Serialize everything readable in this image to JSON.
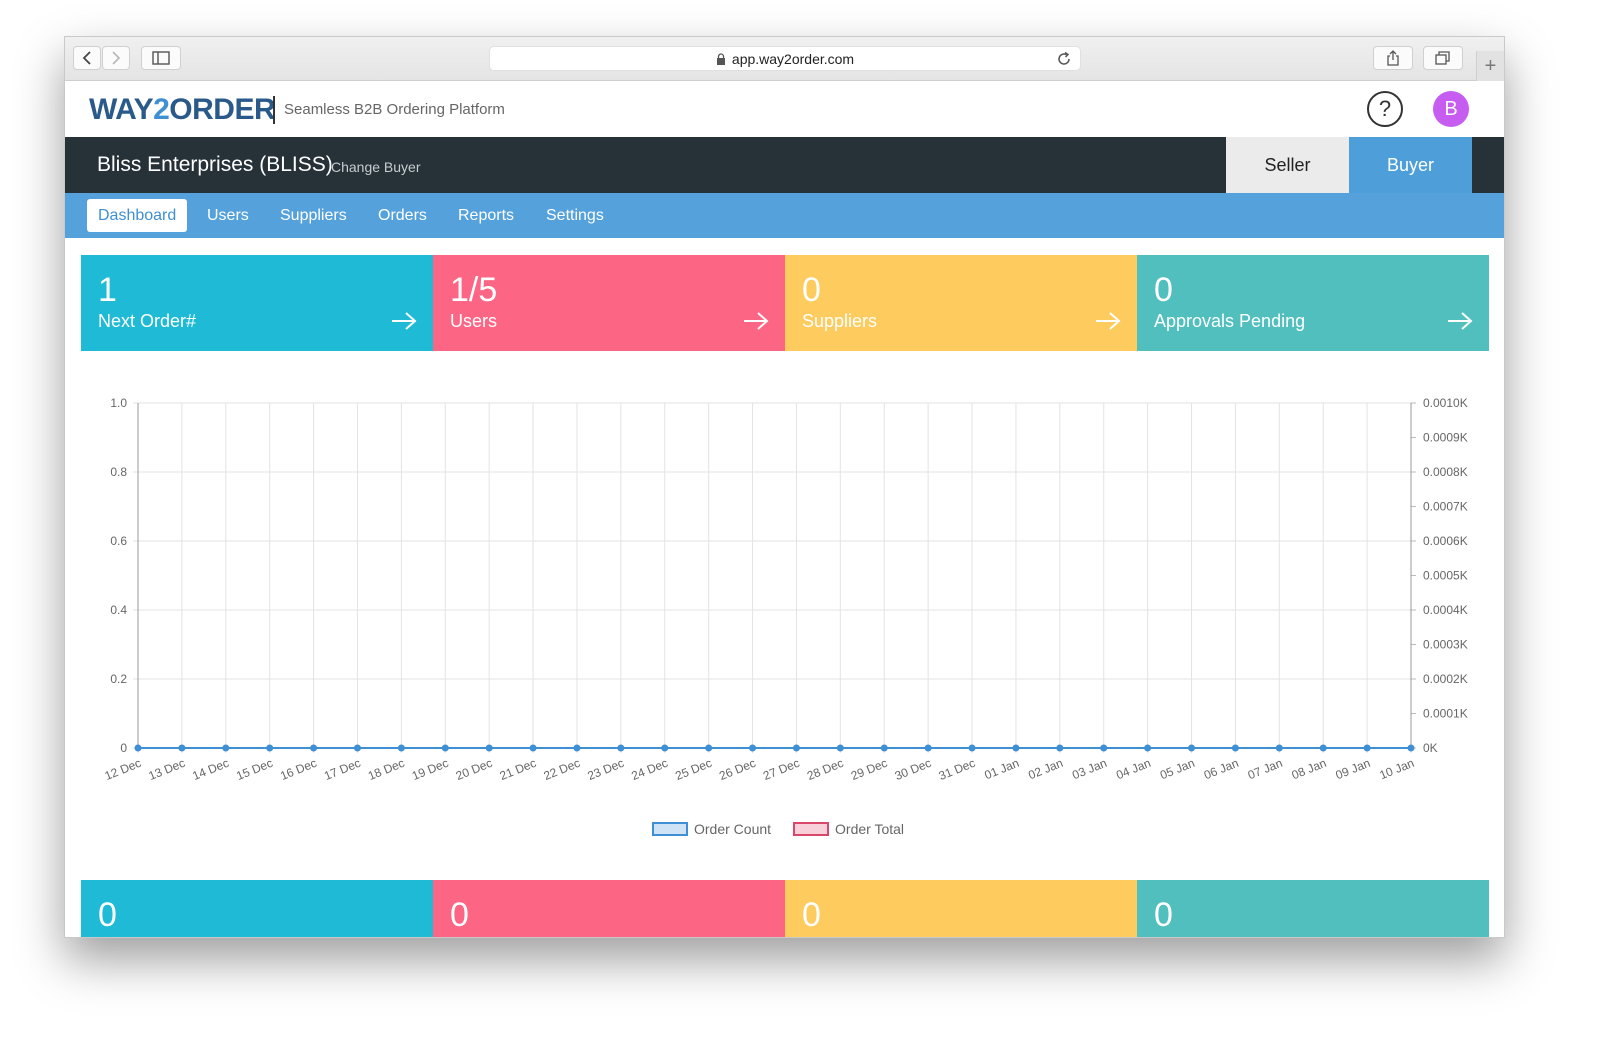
{
  "browser": {
    "url": "app.way2order.com"
  },
  "header": {
    "logo_part1": "WAY",
    "logo_part2": "2",
    "logo_part3": "ORDER",
    "tagline": "Seamless B2B Ordering Platform",
    "help_label": "?",
    "avatar_initial": "B"
  },
  "company_bar": {
    "name": "Bliss Enterprises (BLISS)",
    "change_label": "Change Buyer",
    "roles": [
      "Seller",
      "Buyer"
    ],
    "active_role": "Buyer"
  },
  "nav": {
    "items": [
      "Dashboard",
      "Users",
      "Suppliers",
      "Orders",
      "Reports",
      "Settings"
    ],
    "active": "Dashboard"
  },
  "stat_cards": [
    {
      "value": "1",
      "label": "Next Order#",
      "color": "#1fbbd6"
    },
    {
      "value": "1/5",
      "label": "Users",
      "color": "#fd6584"
    },
    {
      "value": "0",
      "label": "Suppliers",
      "color": "#fdcb5e"
    },
    {
      "value": "0",
      "label": "Approvals Pending",
      "color": "#52bfbf"
    }
  ],
  "bottom_cards": [
    {
      "value": "0",
      "color": "#1fbbd6"
    },
    {
      "value": "0",
      "color": "#fd6584"
    },
    {
      "value": "0",
      "color": "#fdcb5e"
    },
    {
      "value": "0",
      "color": "#52bfbf"
    }
  ],
  "chart_data": {
    "type": "line",
    "categories": [
      "12 Dec",
      "13 Dec",
      "14 Dec",
      "15 Dec",
      "16 Dec",
      "17 Dec",
      "18 Dec",
      "19 Dec",
      "20 Dec",
      "21 Dec",
      "22 Dec",
      "23 Dec",
      "24 Dec",
      "25 Dec",
      "26 Dec",
      "27 Dec",
      "28 Dec",
      "29 Dec",
      "30 Dec",
      "31 Dec",
      "01 Jan",
      "02 Jan",
      "03 Jan",
      "04 Jan",
      "05 Jan",
      "06 Jan",
      "07 Jan",
      "08 Jan",
      "09 Jan",
      "10 Jan"
    ],
    "series": [
      {
        "name": "Order Count",
        "axis": "left",
        "color": "#3f8fd4",
        "fill": "#cfe3f7",
        "values": [
          0,
          0,
          0,
          0,
          0,
          0,
          0,
          0,
          0,
          0,
          0,
          0,
          0,
          0,
          0,
          0,
          0,
          0,
          0,
          0,
          0,
          0,
          0,
          0,
          0,
          0,
          0,
          0,
          0,
          0
        ]
      },
      {
        "name": "Order Total",
        "axis": "right",
        "color": "#d9476a",
        "fill": "#f7d0da",
        "values": [
          0,
          0,
          0,
          0,
          0,
          0,
          0,
          0,
          0,
          0,
          0,
          0,
          0,
          0,
          0,
          0,
          0,
          0,
          0,
          0,
          0,
          0,
          0,
          0,
          0,
          0,
          0,
          0,
          0,
          0
        ]
      }
    ],
    "y_left": {
      "range": [
        0,
        1.0
      ],
      "ticks": [
        "0",
        "0.2",
        "0.4",
        "0.6",
        "0.8",
        "1.0"
      ]
    },
    "y_right": {
      "range": [
        0,
        0.001
      ],
      "ticks": [
        "0K",
        "0.0001K",
        "0.0002K",
        "0.0003K",
        "0.0004K",
        "0.0005K",
        "0.0006K",
        "0.0007K",
        "0.0008K",
        "0.0009K",
        "0.0010K"
      ]
    },
    "grid": true,
    "legend_position": "bottom"
  }
}
